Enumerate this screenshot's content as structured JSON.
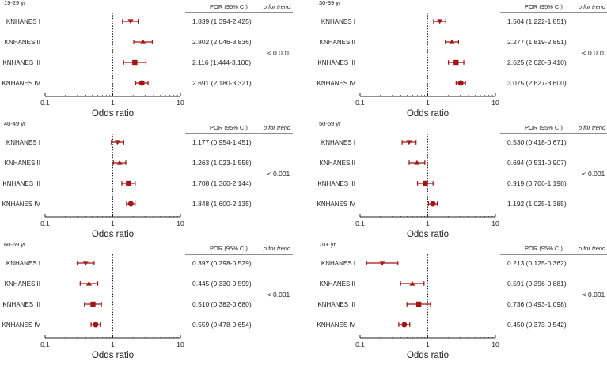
{
  "chart_data": [
    {
      "type": "forest",
      "title": "19-29 yr",
      "xlabel": "Odds ratio",
      "xscale": "log",
      "xlim": [
        0.1,
        10
      ],
      "xticks": [
        "0.1",
        "1",
        "10"
      ],
      "reference_line": 1,
      "table_headers": [
        "POR (95% CI)",
        "p for trend"
      ],
      "p_for_trend": "< 0.001",
      "rows": [
        {
          "label": "KNHANES I",
          "por": 1.839,
          "lo": 1.394,
          "hi": 2.425,
          "text": "1.839 (1.394-2.425)"
        },
        {
          "label": "KNHANES II",
          "por": 2.802,
          "lo": 2.046,
          "hi": 3.836,
          "text": "2.802 (2.046-3.836)"
        },
        {
          "label": "KNHANES III",
          "por": 2.116,
          "lo": 1.444,
          "hi": 3.1,
          "text": "2.116 (1.444-3.100)"
        },
        {
          "label": "KNHANES IV",
          "por": 2.691,
          "lo": 2.18,
          "hi": 3.321,
          "text": "2.691 (2.180-3.321)"
        }
      ]
    },
    {
      "type": "forest",
      "title": "30-39 yr",
      "xlabel": "Odds ratio",
      "xscale": "log",
      "xlim": [
        0.1,
        10
      ],
      "xticks": [
        "0.1",
        "1",
        "10"
      ],
      "reference_line": 1,
      "table_headers": [
        "POR (95% CI)",
        "p for trend"
      ],
      "p_for_trend": "< 0.001",
      "rows": [
        {
          "label": "KNHANES I",
          "por": 1.504,
          "lo": 1.222,
          "hi": 1.851,
          "text": "1.504 (1.222-1.851)"
        },
        {
          "label": "KNHANES II",
          "por": 2.277,
          "lo": 1.819,
          "hi": 2.851,
          "text": "2.277 (1.819-2.851)"
        },
        {
          "label": "KNHANES III",
          "por": 2.625,
          "lo": 2.02,
          "hi": 3.41,
          "text": "2.625 (2.020-3.410)"
        },
        {
          "label": "KNHANES IV",
          "por": 3.075,
          "lo": 2.627,
          "hi": 3.6,
          "text": "3.075 (2.627-3.600)"
        }
      ]
    },
    {
      "type": "forest",
      "title": "40-49 yr",
      "xlabel": "Odds ratio",
      "xscale": "log",
      "xlim": [
        0.1,
        10
      ],
      "xticks": [
        "0.1",
        "1",
        "10"
      ],
      "reference_line": 1,
      "table_headers": [
        "POR (95% CI)",
        "p for trend"
      ],
      "p_for_trend": "< 0.001",
      "rows": [
        {
          "label": "KNHANES I",
          "por": 1.177,
          "lo": 0.954,
          "hi": 1.451,
          "text": "1.177 (0.954-1.451)"
        },
        {
          "label": "KNHANES II",
          "por": 1.263,
          "lo": 1.023,
          "hi": 1.558,
          "text": "1.263 (1.023-1.558)"
        },
        {
          "label": "KNHANES III",
          "por": 1.708,
          "lo": 1.36,
          "hi": 2.144,
          "text": "1.708 (1.360-2.144)"
        },
        {
          "label": "KNHANES IV",
          "por": 1.848,
          "lo": 1.6,
          "hi": 2.135,
          "text": "1.848 (1.600-2.135)"
        }
      ]
    },
    {
      "type": "forest",
      "title": "50-59 yr",
      "xlabel": "Odds ratio",
      "xscale": "log",
      "xlim": [
        0.1,
        10
      ],
      "xticks": [
        "0.1",
        "1",
        "10"
      ],
      "reference_line": 1,
      "table_headers": [
        "POR (95% CI)",
        "p for trend"
      ],
      "p_for_trend": "< 0.001",
      "rows": [
        {
          "label": "KNHANES I",
          "por": 0.53,
          "lo": 0.418,
          "hi": 0.671,
          "text": "0.530 (0.418-0.671)"
        },
        {
          "label": "KNHANES II",
          "por": 0.694,
          "lo": 0.531,
          "hi": 0.907,
          "text": "0.694 (0.531-0.907)"
        },
        {
          "label": "KNHANES III",
          "por": 0.919,
          "lo": 0.706,
          "hi": 1.198,
          "text": "0.919 (0.706-1.198)"
        },
        {
          "label": "KNHANES IV",
          "por": 1.192,
          "lo": 1.025,
          "hi": 1.385,
          "text": "1.192 (1.025-1.385)"
        }
      ]
    },
    {
      "type": "forest",
      "title": "60-69 yr",
      "xlabel": "Odds ratio",
      "xscale": "log",
      "xlim": [
        0.1,
        10
      ],
      "xticks": [
        "0.1",
        "1",
        "10"
      ],
      "reference_line": 1,
      "table_headers": [
        "POR (95% CI)",
        "p for trend"
      ],
      "p_for_trend": "< 0.001",
      "rows": [
        {
          "label": "KNHANES I",
          "por": 0.397,
          "lo": 0.298,
          "hi": 0.529,
          "text": "0.397 (0.298-0.529)"
        },
        {
          "label": "KNHANES II",
          "por": 0.445,
          "lo": 0.33,
          "hi": 0.599,
          "text": "0.445 (0.330-0.599)"
        },
        {
          "label": "KNHANES III",
          "por": 0.51,
          "lo": 0.382,
          "hi": 0.68,
          "text": "0.510 (0.382-0.680)"
        },
        {
          "label": "KNHANES IV",
          "por": 0.559,
          "lo": 0.478,
          "hi": 0.654,
          "text": "0.559 (0.478-0.654)"
        }
      ]
    },
    {
      "type": "forest",
      "title": "70+ yr",
      "xlabel": "Odds ratio",
      "xscale": "log",
      "xlim": [
        0.1,
        10
      ],
      "xticks": [
        "0.1",
        "1",
        "10"
      ],
      "reference_line": 1,
      "table_headers": [
        "POR (95% CI)",
        "p for trend"
      ],
      "p_for_trend": "< 0.001",
      "rows": [
        {
          "label": "KNHANES I",
          "por": 0.213,
          "lo": 0.125,
          "hi": 0.362,
          "text": "0.213 (0.125-0.362)"
        },
        {
          "label": "KNHANES II",
          "por": 0.591,
          "lo": 0.396,
          "hi": 0.881,
          "text": "0.591 (0.396-0.881)"
        },
        {
          "label": "KNHANES III",
          "por": 0.736,
          "lo": 0.493,
          "hi": 1.098,
          "text": "0.736 (0.493-1.098)"
        },
        {
          "label": "KNHANES IV",
          "por": 0.45,
          "lo": 0.373,
          "hi": 0.542,
          "text": "0.450 (0.373-0.542)"
        }
      ]
    }
  ],
  "colors": {
    "marker": "#a31515",
    "axis": "#222222",
    "reference_line": "#222222"
  },
  "marker_shapes": [
    "down-triangle",
    "up-triangle",
    "square",
    "circle"
  ]
}
